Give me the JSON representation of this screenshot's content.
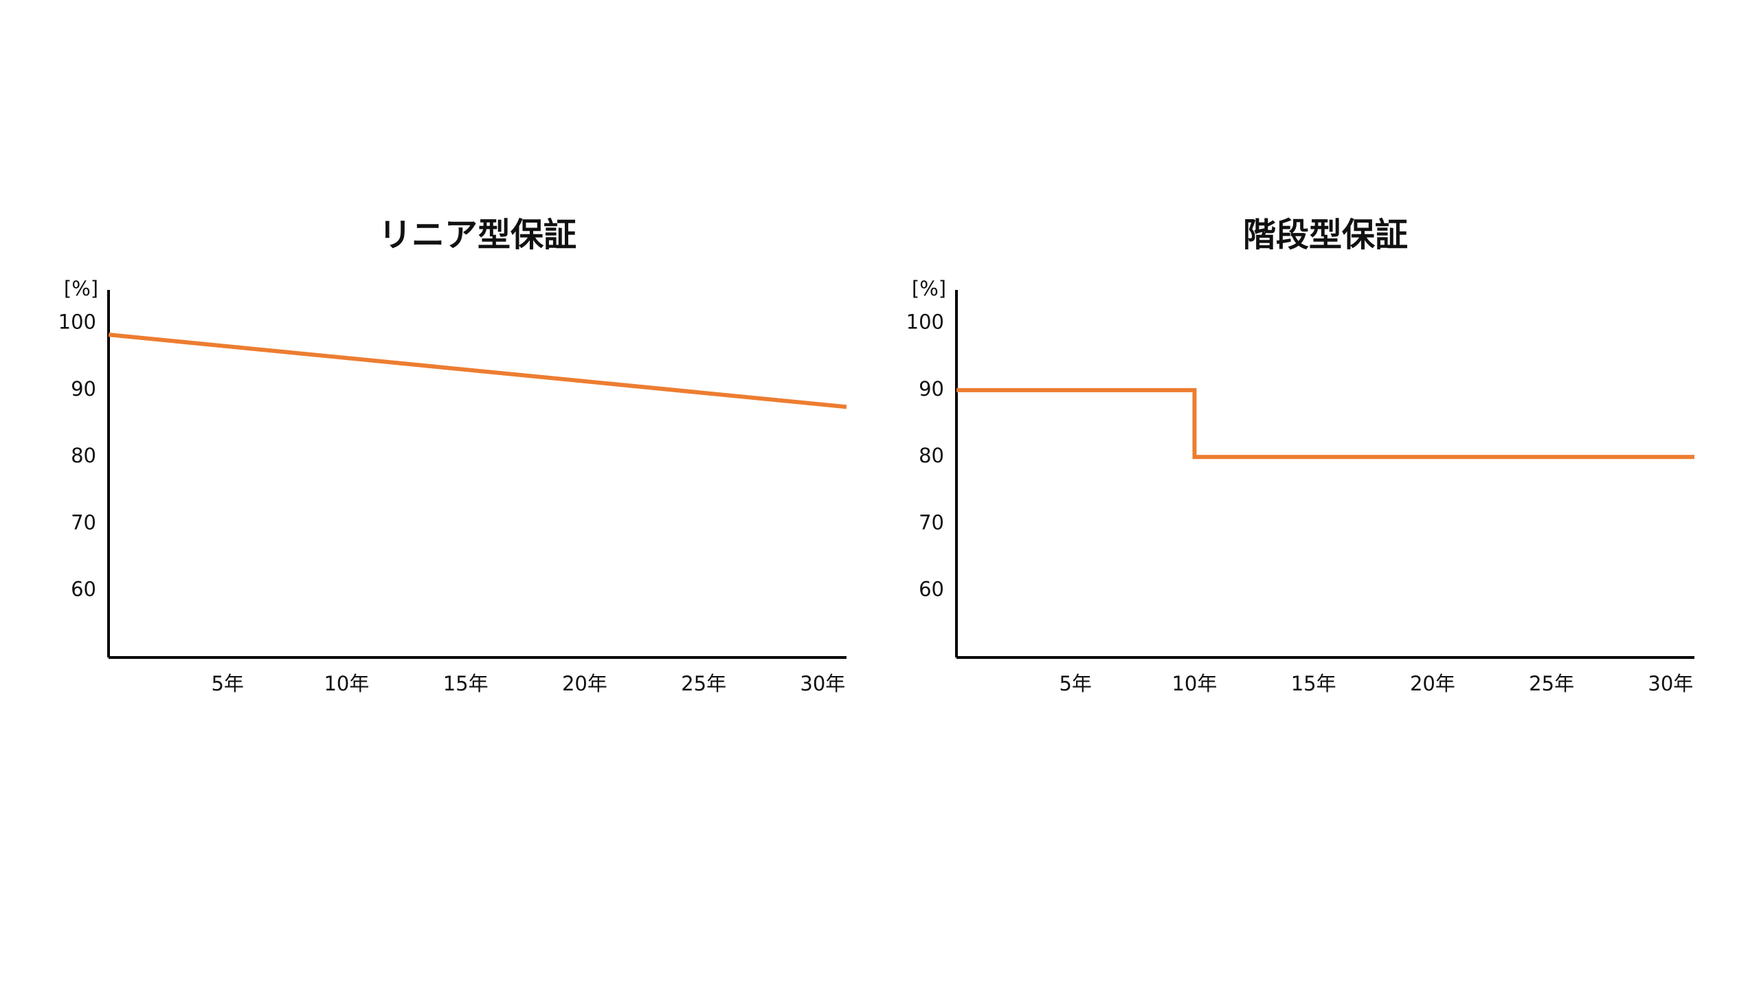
{
  "chart_data": [
    {
      "type": "line",
      "title": "リニア型保証",
      "y_label": "[%]",
      "x": [
        0,
        31
      ],
      "values": [
        98.3,
        87.5
      ],
      "color": "#ed7d31",
      "xlim": [
        0,
        31
      ],
      "xticks": [
        {
          "value": 5,
          "label": "5年"
        },
        {
          "value": 10,
          "label": "10年"
        },
        {
          "value": 15,
          "label": "15年"
        },
        {
          "value": 20,
          "label": "20年"
        },
        {
          "value": 25,
          "label": "25年"
        },
        {
          "value": 30,
          "label": "30年"
        }
      ],
      "ylim": [
        50,
        105
      ],
      "yticks": [
        60,
        70,
        80,
        90,
        100
      ]
    },
    {
      "type": "line",
      "title": "階段型保証",
      "y_label": "[%]",
      "x": [
        0,
        10,
        10,
        31
      ],
      "values": [
        90,
        90,
        80,
        80
      ],
      "color": "#ed7d31",
      "xlim": [
        0,
        31
      ],
      "xticks": [
        {
          "value": 5,
          "label": "5年"
        },
        {
          "value": 10,
          "label": "10年"
        },
        {
          "value": 15,
          "label": "15年"
        },
        {
          "value": 20,
          "label": "20年"
        },
        {
          "value": 25,
          "label": "25年"
        },
        {
          "value": 30,
          "label": "30年"
        }
      ],
      "ylim": [
        50,
        105
      ],
      "yticks": [
        60,
        70,
        80,
        90,
        100
      ]
    }
  ]
}
